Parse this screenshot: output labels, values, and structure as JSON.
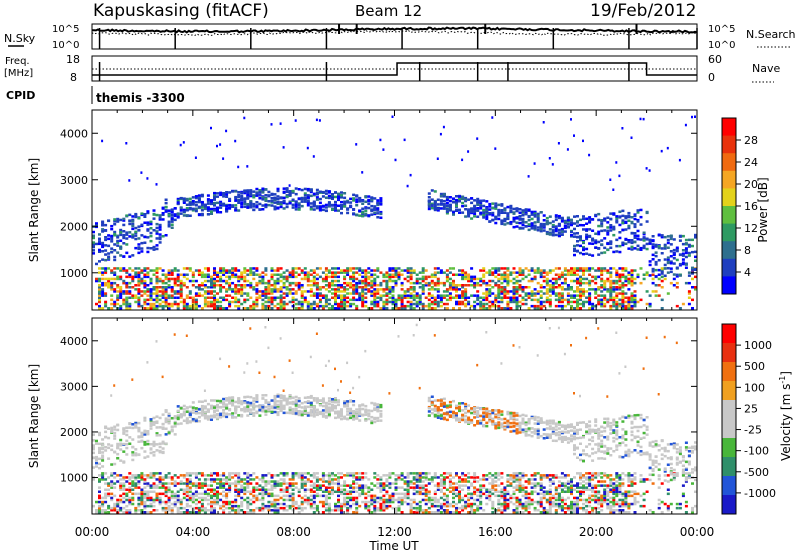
{
  "header": {
    "title": "Kapuskasing (fitACF)",
    "beam": "Beam 12",
    "date": "19/Feb/2012"
  },
  "top_panel": {
    "left_label": "N.Sky",
    "right_label": "N.Search",
    "left_ticks": [
      "10^5",
      "10^0"
    ],
    "right_ticks": [
      "10^5",
      "10^0"
    ]
  },
  "freq_panel": {
    "left_label_1": "Freq.",
    "left_label_2": "[MHz]",
    "right_label": "Nave",
    "left_ticks": [
      "18",
      "8"
    ],
    "right_ticks": [
      "60",
      "0"
    ]
  },
  "cpid": {
    "label": "CPID",
    "value": "themis -3300"
  },
  "chart_data": [
    {
      "type": "heatmap",
      "name": "power",
      "ylabel": "Slant Range [km]",
      "xlabel": "Time UT",
      "x_ticks": [
        "00:00",
        "04:00",
        "08:00",
        "12:00",
        "16:00",
        "20:00",
        "00:00"
      ],
      "y_ticks": [
        1000,
        2000,
        3000,
        4000
      ],
      "ylim": [
        200,
        4500
      ],
      "xlim_hours": [
        0,
        24
      ],
      "colorbar": {
        "label": "Power [dB]",
        "ticks": [
          "4",
          "8",
          "12",
          "16",
          "20",
          "24",
          "28"
        ],
        "colors": [
          "#0000ff",
          "#1f3fbf",
          "#2e6f8e",
          "#2e9a62",
          "#5fbf3f",
          "#e3d21b",
          "#f5a623",
          "#f06a10",
          "#e8320c",
          "#ff0000"
        ]
      }
    },
    {
      "type": "heatmap",
      "name": "velocity",
      "ylabel": "Slant Range [km]",
      "xlabel": "Time UT",
      "x_ticks": [
        "00:00",
        "04:00",
        "08:00",
        "12:00",
        "16:00",
        "20:00",
        "00:00"
      ],
      "y_ticks": [
        1000,
        2000,
        3000,
        4000
      ],
      "ylim": [
        200,
        4500
      ],
      "xlim_hours": [
        0,
        24
      ],
      "colorbar": {
        "label": "Velocity [m s",
        "label_sup": "-1",
        "label_end": "]",
        "ticks": [
          "1000",
          "500",
          "100",
          "25",
          "-25",
          "-100",
          "-500",
          "-1000"
        ],
        "colors": [
          "#1a1ac8",
          "#2255d8",
          "#2f8f6a",
          "#48b63a",
          "#c8c8c8",
          "#c8c8c8",
          "#f0a020",
          "#f07010",
          "#e83010",
          "#ff0000"
        ]
      }
    }
  ],
  "xaxis": {
    "label": "Time UT"
  }
}
